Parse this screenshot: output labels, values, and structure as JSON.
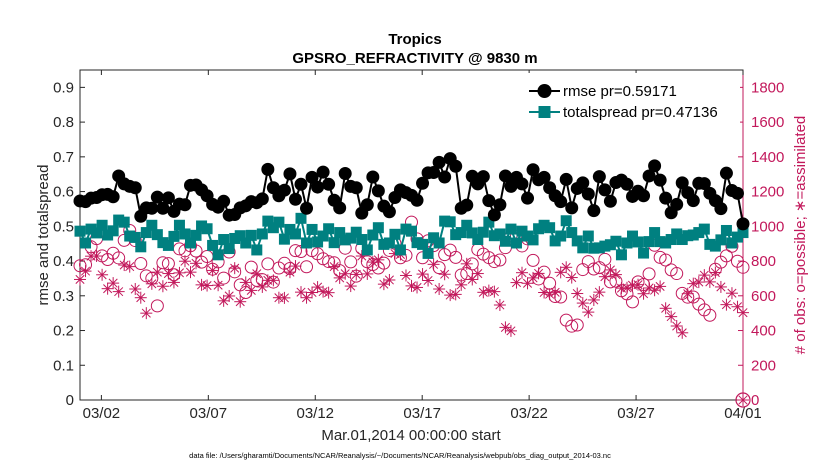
{
  "chart_data": {
    "type": "line",
    "title": "Tropics",
    "subtitle": "GPSRO_REFRACTIVITY @ 9830 m",
    "xlabel": "Mar.01,2014 00:00:00 start",
    "ylabel_left": "rmse and totalspread",
    "ylabel_right": "# of obs: o=possible; ∗=assimilated",
    "footnote": "data file: /Users/gharamti/Documents/NCAR/Reanalysis/~/Documents/NCAR/Reanalysis/webpub/obs_diag_output_2014-03.nc",
    "xlim": [
      1.0,
      32.0
    ],
    "x_ticks": [
      2,
      7,
      12,
      17,
      22,
      27,
      32
    ],
    "x_tick_labels": [
      "03/02",
      "03/07",
      "03/12",
      "03/17",
      "03/22",
      "03/27",
      "04/01"
    ],
    "ylim_left": [
      0,
      0.95
    ],
    "y_ticks_left": [
      "0",
      "0.1",
      "0.2",
      "0.3",
      "0.4",
      "0.5",
      "0.6",
      "0.7",
      "0.8",
      "0.9"
    ],
    "ylim_right": [
      0,
      1900
    ],
    "y_ticks_right": [
      "0",
      "200",
      "400",
      "600",
      "800",
      "1000",
      "1200",
      "1400",
      "1600",
      "1800"
    ],
    "legend_position": "top-right",
    "colors": {
      "rmse": "#000000",
      "totalspread": "#008080",
      "obs": "#c2185b",
      "axis": "#262626"
    },
    "series": [
      {
        "name": "rmse",
        "label": "rmse pr=0.59171",
        "axis": "left",
        "values": [
          0.573,
          0.571,
          0.581,
          0.583,
          0.591,
          0.592,
          0.585,
          0.645,
          0.622,
          0.615,
          0.611,
          0.529,
          0.553,
          0.552,
          0.584,
          0.552,
          0.582,
          0.543,
          0.564,
          0.562,
          0.618,
          0.619,
          0.605,
          0.588,
          0.563,
          0.555,
          0.572,
          0.532,
          0.534,
          0.553,
          0.559,
          0.571,
          0.568,
          0.579,
          0.664,
          0.611,
          0.588,
          0.604,
          0.651,
          0.578,
          0.621,
          0.552,
          0.641,
          0.613,
          0.656,
          0.621,
          0.575,
          0.553,
          0.652,
          0.615,
          0.611,
          0.538,
          0.562,
          0.642,
          0.602,
          0.558,
          0.542,
          0.583,
          0.605,
          0.597,
          0.589,
          0.575,
          0.624,
          0.654,
          0.655,
          0.684,
          0.642,
          0.695,
          0.673,
          0.552,
          0.561,
          0.644,
          0.622,
          0.643,
          0.574,
          0.533,
          0.562,
          0.645,
          0.615,
          0.641,
          0.622,
          0.581,
          0.663,
          0.634,
          0.641,
          0.611,
          0.588,
          0.571,
          0.635,
          0.553,
          0.609,
          0.625,
          0.593,
          0.545,
          0.643,
          0.605,
          0.572,
          0.626,
          0.633,
          0.621,
          0.586,
          0.601,
          0.588,
          0.645,
          0.674,
          0.633,
          0.581,
          0.539,
          0.563,
          0.625,
          0.597,
          0.574,
          0.624,
          0.623,
          0.595,
          0.574,
          0.551,
          0.653,
          0.603,
          0.595,
          0.507
        ]
      },
      {
        "name": "totalspread",
        "label": "totalspread pr=0.47136",
        "axis": "left",
        "values": [
          0.486,
          0.452,
          0.492,
          0.481,
          0.503,
          0.475,
          0.487,
          0.518,
          0.512,
          0.472,
          0.468,
          0.441,
          0.482,
          0.503,
          0.476,
          0.453,
          0.445,
          0.471,
          0.503,
          0.478,
          0.452,
          0.474,
          0.501,
          0.493,
          0.445,
          0.418,
          0.462,
          0.436,
          0.465,
          0.473,
          0.452,
          0.474,
          0.432,
          0.478,
          0.515,
          0.496,
          0.512,
          0.463,
          0.491,
          0.478,
          0.523,
          0.452,
          0.491,
          0.455,
          0.472,
          0.493,
          0.453,
          0.482,
          0.461,
          0.466,
          0.483,
          0.462,
          0.432,
          0.475,
          0.496,
          0.448,
          0.452,
          0.477,
          0.432,
          0.492,
          0.486,
          0.453,
          0.448,
          0.422,
          0.467,
          0.452,
          0.515,
          0.513,
          0.476,
          0.482,
          0.503,
          0.481,
          0.462,
          0.483,
          0.512,
          0.473,
          0.478,
          0.457,
          0.492,
          0.452,
          0.486,
          0.472,
          0.461,
          0.493,
          0.503,
          0.496,
          0.458,
          0.472,
          0.516,
          0.482,
          0.458,
          0.438,
          0.472,
          0.437,
          0.438,
          0.443,
          0.447,
          0.457,
          0.418,
          0.452,
          0.472,
          0.455,
          0.423,
          0.456,
          0.482,
          0.456,
          0.452,
          0.462,
          0.478,
          0.462,
          0.473,
          0.475,
          0.482,
          0.492,
          0.448,
          0.443,
          0.461,
          0.488,
          0.452,
          0.469,
          0.482
        ]
      },
      {
        "name": "obs_possible",
        "label": "possible",
        "axis": "right",
        "values": [
          773,
          779,
          882,
          929,
          830,
          809,
          845,
          818,
          919,
          976,
          918,
          786,
          715,
          700,
          542,
          790,
          785,
          721,
          870,
          859,
          888,
          858,
          794,
          826,
          753,
          795,
          702,
          852,
          738,
          663,
          619,
          765,
          689,
          693,
          784,
          679,
          760,
          787,
          757,
          860,
          855,
          767,
          860,
          842,
          813,
          797,
          790,
          745,
          874,
          795,
          713,
          873,
          796,
          780,
          760,
          788,
          861,
          902,
          819,
          833,
          1024,
          928,
          819,
          917,
          889,
          762,
          837,
          863,
          821,
          720,
          728,
          784,
          866,
          840,
          820,
          797,
          806,
          877,
          945,
          942,
          887,
          928,
          804,
          697,
          736,
          672,
          596,
          593,
          460,
          425,
          432,
          751,
          797,
          754,
          762,
          810,
          680,
          684,
          629,
          611,
          565,
          680,
          665,
          726,
          891,
          821,
          806,
          749,
          728,
          614,
          592,
          593,
          552,
          519,
          488,
          753,
          794,
          830,
          885,
          799,
          764
        ]
      },
      {
        "name": "obs_assimilated",
        "label": "assimilated",
        "axis": "right",
        "values": [
          694,
          742,
          828,
          829,
          721,
          641,
          673,
          624,
          777,
          768,
          639,
          589,
          500,
          669,
          736,
          655,
          728,
          677,
          732,
          799,
          736,
          787,
          663,
          659,
          746,
          661,
          571,
          599,
          759,
          566,
          677,
          631,
          727,
          651,
          689,
          689,
          589,
          588,
          736,
          771,
          621,
          589,
          619,
          650,
          624,
          618,
          768,
          703,
          727,
          656,
          723,
          829,
          726,
          794,
          807,
          667,
          691,
          843,
          838,
          717,
          657,
          648,
          725,
          688,
          781,
          639,
          724,
          604,
          608,
          663,
          784,
          694,
          728,
          620,
          630,
          624,
          547,
          418,
          398,
          676,
          733,
          672,
          703,
          729,
          619,
          609,
          620,
          735,
          764,
          705,
          613,
          558,
          506,
          576,
          621,
          710,
          749,
          722,
          644,
          646,
          661,
          664,
          612,
          645,
          632,
          654,
          528,
          480,
          426,
          387,
          612,
          670,
          679,
          719,
          680,
          734,
          651,
          549,
          615,
          537,
          503
        ]
      }
    ],
    "obs_end_marker": {
      "x": 32.0,
      "value": 0
    }
  }
}
